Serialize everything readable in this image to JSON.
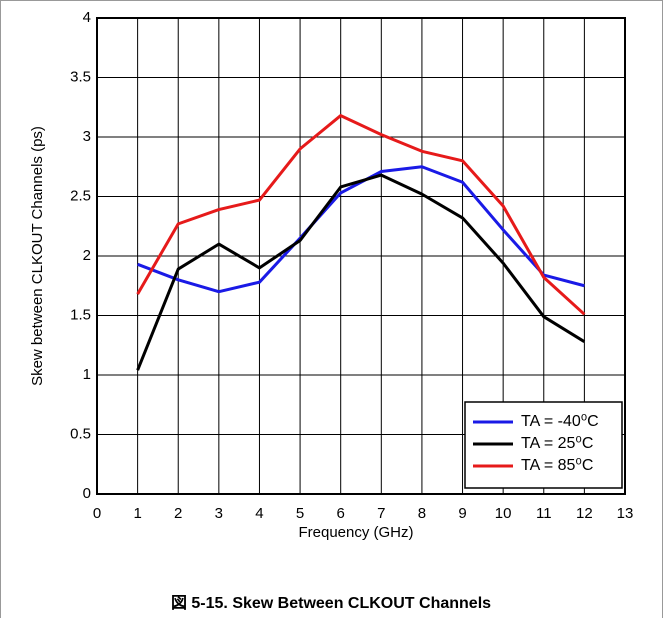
{
  "chart_data": {
    "type": "line",
    "caption": "図 5-15. Skew Between CLKOUT Channels",
    "x_label": "Frequency (GHz)",
    "y_label": "Skew between CLKOUT Channels (ps)",
    "x": [
      1,
      2,
      3,
      4,
      5,
      6,
      7,
      8,
      9,
      10,
      11,
      12
    ],
    "series": [
      {
        "name": "TA = -40⁰C",
        "color": "#1a1ae6",
        "values": [
          1.93,
          1.8,
          1.7,
          1.78,
          2.15,
          2.53,
          2.71,
          2.75,
          2.62,
          2.22,
          1.84,
          1.75
        ]
      },
      {
        "name": "TA = 25⁰C",
        "color": "#000000",
        "values": [
          1.04,
          1.89,
          2.1,
          1.9,
          2.13,
          2.58,
          2.68,
          2.52,
          2.32,
          1.94,
          1.49,
          1.28
        ]
      },
      {
        "name": "TA = 85⁰C",
        "color": "#e61a1a",
        "values": [
          1.68,
          2.27,
          2.39,
          2.47,
          2.9,
          3.18,
          3.02,
          2.88,
          2.8,
          2.42,
          1.82,
          1.51
        ]
      }
    ],
    "xlim": [
      0,
      13
    ],
    "xticks": [
      0,
      1,
      2,
      3,
      4,
      5,
      6,
      7,
      8,
      9,
      10,
      11,
      12,
      13
    ],
    "ylim": [
      0,
      4
    ],
    "yticks": [
      0,
      0.5,
      1,
      1.5,
      2,
      2.5,
      3,
      3.5,
      4
    ],
    "grid": true,
    "legend": "lower right"
  }
}
